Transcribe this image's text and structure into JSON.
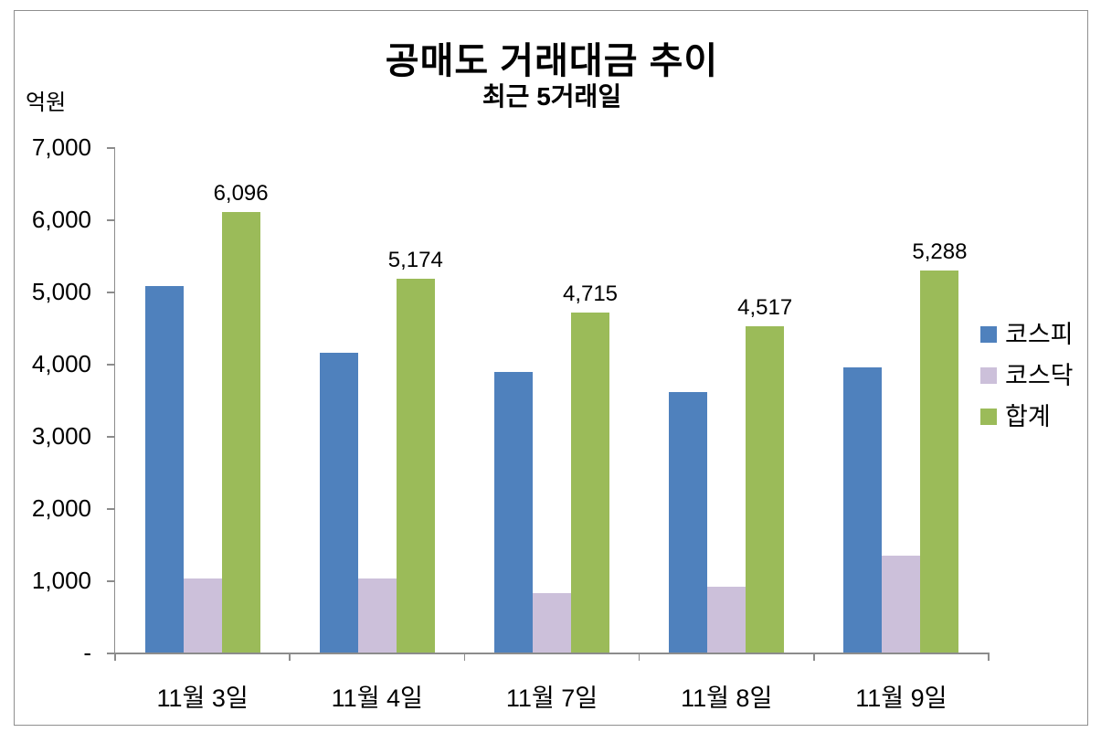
{
  "header": {
    "title": "공매도 거래대금 추이",
    "subtitle": "최근 5거래일"
  },
  "colors": {
    "kospi": "#4F81BD",
    "kosdaq": "#CCC0DA",
    "total": "#9BBB59",
    "axis": "#8C8C8C",
    "frame_border": "#8F8F8F",
    "text": "#000000",
    "background": "#FFFFFF"
  },
  "chart_data": {
    "type": "bar",
    "title": "공매도 거래대금 추이",
    "subtitle": "최근 5거래일",
    "xlabel": "",
    "ylabel": "억원",
    "ylim": [
      0,
      7000
    ],
    "y_tick_step": 1000,
    "grid": false,
    "legend_position": "right",
    "categories": [
      "11월 3일",
      "11월 4일",
      "11월 7일",
      "11월 8일",
      "11월 9일"
    ],
    "series": [
      {
        "key": "kospi",
        "name": "코스피",
        "color": "#4F81BD",
        "values": [
          5070,
          4148,
          3890,
          3605,
          3950
        ]
      },
      {
        "key": "kosdaq",
        "name": "코스닥",
        "color": "#CCC0DA",
        "values": [
          1026,
          1026,
          825,
          912,
          1338
        ]
      },
      {
        "key": "total",
        "name": "합계",
        "color": "#9BBB59",
        "values": [
          6096,
          5174,
          4715,
          4517,
          5288
        ],
        "data_labels": [
          "6,096",
          "5,174",
          "4,715",
          "4,517",
          "5,288"
        ]
      }
    ],
    "y_ticks": [
      {
        "value": 7000,
        "label": "7,000"
      },
      {
        "value": 6000,
        "label": "6,000"
      },
      {
        "value": 5000,
        "label": "5,000"
      },
      {
        "value": 4000,
        "label": "4,000"
      },
      {
        "value": 3000,
        "label": "3,000"
      },
      {
        "value": 2000,
        "label": "2,000"
      },
      {
        "value": 1000,
        "label": "1,000"
      },
      {
        "value": 0,
        "label": "-"
      }
    ]
  }
}
